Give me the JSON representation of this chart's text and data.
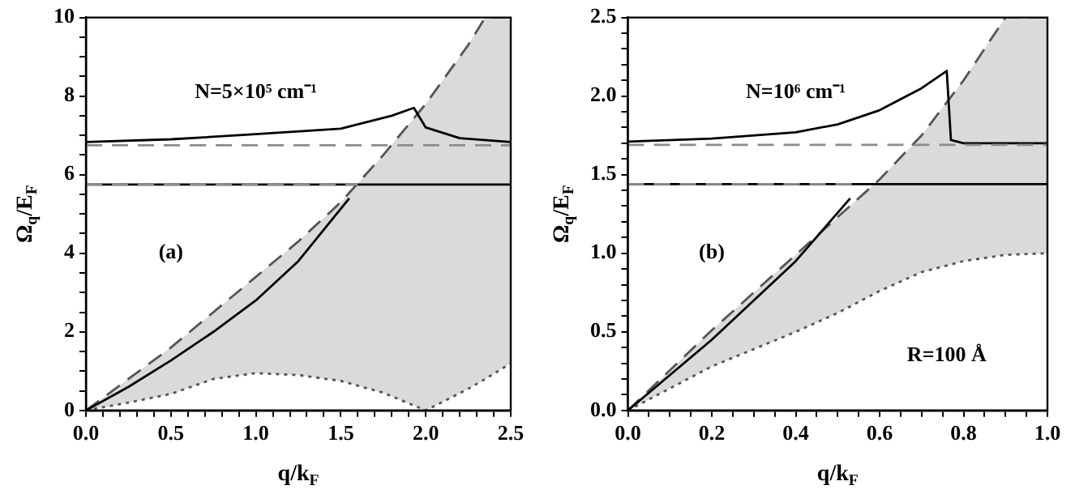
{
  "chart_data": [
    {
      "type": "line",
      "xlabel": "q/k$_{F}$",
      "ylabel": "Ω$_{q}$/E$_{F}$",
      "annotations": [
        "N=5×10⁵ cm⁻¹",
        "(a)"
      ],
      "xlim": [
        0,
        2.5
      ],
      "ylim": [
        0,
        10
      ],
      "xticks": [
        {
          "value": 0,
          "label": "0.0"
        },
        {
          "value": 0.1,
          "label": null
        },
        {
          "value": 0.2,
          "label": null
        },
        {
          "value": 0.3,
          "label": null
        },
        {
          "value": 0.4,
          "label": null
        },
        {
          "value": 0.5,
          "label": "0.5"
        },
        {
          "value": 0.6,
          "label": null
        },
        {
          "value": 0.7,
          "label": null
        },
        {
          "value": 0.8,
          "label": null
        },
        {
          "value": 0.9,
          "label": null
        },
        {
          "value": 1,
          "label": "1.0"
        },
        {
          "value": 1.1,
          "label": null
        },
        {
          "value": 1.2,
          "label": null
        },
        {
          "value": 1.3,
          "label": null
        },
        {
          "value": 1.4,
          "label": null
        },
        {
          "value": 1.5,
          "label": "1.5"
        },
        {
          "value": 1.6,
          "label": null
        },
        {
          "value": 1.7,
          "label": null
        },
        {
          "value": 1.8,
          "label": null
        },
        {
          "value": 1.9,
          "label": null
        },
        {
          "value": 2,
          "label": "2.0"
        },
        {
          "value": 2.1,
          "label": null
        },
        {
          "value": 2.2,
          "label": null
        },
        {
          "value": 2.3,
          "label": null
        },
        {
          "value": 2.4,
          "label": null
        },
        {
          "value": 2.5,
          "label": "2.5"
        }
      ],
      "yticks": [
        0,
        {
          "value": 0.5,
          "label": null
        },
        {
          "value": 1,
          "label": null
        },
        {
          "value": 1.5,
          "label": null
        },
        2,
        {
          "value": 2.5,
          "label": null
        },
        {
          "value": 3,
          "label": null
        },
        {
          "value": 3.5,
          "label": null
        },
        4,
        {
          "value": 4.5,
          "label": null
        },
        {
          "value": 5,
          "label": null
        },
        {
          "value": 5.5,
          "label": null
        },
        6,
        {
          "value": 6.5,
          "label": null
        },
        {
          "value": 7,
          "label": null
        },
        {
          "value": 7.5,
          "label": null
        },
        8,
        {
          "value": 8.5,
          "label": null
        },
        {
          "value": 9,
          "label": null
        },
        {
          "value": 9.5,
          "label": null
        },
        10
      ],
      "series": [
        {
          "color": "#555555",
          "line_style": "dotted",
          "x": [
            0,
            0.25,
            0.5,
            0.75,
            1,
            1.25,
            1.5,
            1.75,
            2,
            2.25,
            2.35,
            2.5
          ],
          "values": [
            0,
            0.2,
            0.42,
            0.8,
            0.95,
            0.9,
            0.75,
            0.45,
            0,
            0.55,
            0.8,
            1.2
          ]
        },
        {
          "color": "#555555",
          "line_style": "dashed",
          "x": [
            0,
            0.25,
            0.5,
            0.75,
            1,
            1.25,
            1.5,
            1.75,
            2,
            2.25,
            2.35,
            2.5
          ],
          "values": [
            0,
            0.8,
            1.6,
            2.5,
            3.4,
            4.3,
            5.3,
            6.5,
            7.8,
            9.3,
            10,
            10
          ],
          "lower": [
            0,
            0.2,
            0.42,
            0.8,
            0.95,
            0.9,
            0.75,
            0.45,
            0,
            0.55,
            0.8,
            1.2
          ],
          "upper": [
            0,
            0.8,
            1.6,
            2.5,
            3.4,
            4.3,
            5.3,
            6.5,
            7.8,
            9.3,
            10,
            10
          ]
        },
        {
          "color": "#000000",
          "line_style": "solid",
          "x": [
            0,
            0.25,
            0.5,
            0.75,
            1,
            1.25,
            1.55
          ],
          "values": [
            0,
            0.6,
            1.27,
            2,
            2.8,
            3.8,
            5.4
          ]
        },
        {
          "color": "#000000",
          "line_style": "solid",
          "x": [
            0,
            2.5
          ],
          "values": [
            5.75,
            5.75
          ]
        },
        {
          "color": "#8c8c8c",
          "line_style": "dashed",
          "x": [
            0,
            1.6
          ],
          "values": [
            5.75,
            5.75
          ]
        },
        {
          "color": "#000000",
          "line_style": "solid",
          "x": [
            0,
            0.5,
            1,
            1.5,
            1.8,
            1.93,
            2,
            2.2,
            2.5
          ],
          "values": [
            6.83,
            6.9,
            7.03,
            7.17,
            7.5,
            7.7,
            7.2,
            6.93,
            6.83
          ]
        },
        {
          "color": "#8c8c8c",
          "line_style": "dashed",
          "x": [
            0,
            2.5
          ],
          "values": [
            6.75,
            6.75
          ]
        }
      ]
    },
    {
      "type": "line",
      "xlabel": "q/k$_{F}$",
      "ylabel": "Ω$_{q}$/E$_{F}$",
      "annotations": [
        "N=10⁶ cm⁻¹",
        "(b)",
        "R=100 Å"
      ],
      "xlim": [
        0,
        1
      ],
      "ylim": [
        0,
        2.5
      ],
      "xticks": [
        {
          "value": 0,
          "label": "0.0"
        },
        {
          "value": 0.05,
          "label": null
        },
        {
          "value": 0.1,
          "label": null
        },
        {
          "value": 0.15,
          "label": null
        },
        {
          "value": 0.2,
          "label": "0.2"
        },
        {
          "value": 0.25,
          "label": null
        },
        {
          "value": 0.3,
          "label": null
        },
        {
          "value": 0.35,
          "label": null
        },
        {
          "value": 0.4,
          "label": "0.4"
        },
        {
          "value": 0.45,
          "label": null
        },
        {
          "value": 0.5,
          "label": null
        },
        {
          "value": 0.55,
          "label": null
        },
        {
          "value": 0.6,
          "label": "0.6"
        },
        {
          "value": 0.65,
          "label": null
        },
        {
          "value": 0.7,
          "label": null
        },
        {
          "value": 0.75,
          "label": null
        },
        {
          "value": 0.8,
          "label": "0.8"
        },
        {
          "value": 0.85,
          "label": null
        },
        {
          "value": 0.9,
          "label": null
        },
        {
          "value": 0.95,
          "label": null
        },
        {
          "value": 1,
          "label": "1.0"
        }
      ],
      "yticks": [
        {
          "value": 0,
          "label": "0.0"
        },
        {
          "value": 0.1,
          "label": null
        },
        {
          "value": 0.2,
          "label": null
        },
        {
          "value": 0.3,
          "label": null
        },
        {
          "value": 0.4,
          "label": null
        },
        {
          "value": 0.5,
          "label": "0.5"
        },
        {
          "value": 0.6,
          "label": null
        },
        {
          "value": 0.7,
          "label": null
        },
        {
          "value": 0.8,
          "label": null
        },
        {
          "value": 0.9,
          "label": null
        },
        {
          "value": 1,
          "label": "1.0"
        },
        {
          "value": 1.1,
          "label": null
        },
        {
          "value": 1.2,
          "label": null
        },
        {
          "value": 1.3,
          "label": null
        },
        {
          "value": 1.4,
          "label": null
        },
        {
          "value": 1.5,
          "label": "1.5"
        },
        {
          "value": 1.6,
          "label": null
        },
        {
          "value": 1.7,
          "label": null
        },
        {
          "value": 1.8,
          "label": null
        },
        {
          "value": 1.9,
          "label": null
        },
        {
          "value": 2,
          "label": "2.0"
        },
        {
          "value": 2.1,
          "label": null
        },
        {
          "value": 2.2,
          "label": null
        },
        {
          "value": 2.3,
          "label": null
        },
        {
          "value": 2.4,
          "label": null
        },
        {
          "value": 2.5,
          "label": "2.5"
        }
      ],
      "series": [
        {
          "color": "#555555",
          "line_style": "dotted",
          "x": [
            0,
            0.2,
            0.4,
            0.5,
            0.6,
            0.7,
            0.8,
            0.9,
            1
          ],
          "values": [
            0,
            0.28,
            0.5,
            0.62,
            0.76,
            0.88,
            0.95,
            0.99,
            1
          ]
        },
        {
          "color": "#555555",
          "line_style": "dashed",
          "x": [
            0,
            0.2,
            0.4,
            0.5,
            0.6,
            0.7,
            0.8,
            0.9,
            1
          ],
          "values": [
            0,
            0.51,
            0.99,
            1.23,
            1.47,
            1.75,
            2.1,
            2.5,
            2.5
          ],
          "lower": [
            0,
            0.28,
            0.5,
            0.62,
            0.76,
            0.88,
            0.95,
            0.99,
            1
          ],
          "upper": [
            0,
            0.51,
            0.99,
            1.23,
            1.47,
            1.75,
            2.1,
            2.5,
            2.5
          ]
        },
        {
          "color": "#000000",
          "line_style": "solid",
          "x": [
            0,
            0.2,
            0.4,
            0.53
          ],
          "values": [
            0,
            0.45,
            0.95,
            1.35
          ]
        },
        {
          "color": "#000000",
          "line_style": "solid",
          "x": [
            0,
            1
          ],
          "values": [
            1.44,
            1.44
          ]
        },
        {
          "color": "#8c8c8c",
          "line_style": "dashed",
          "x": [
            0,
            0.55
          ],
          "values": [
            1.44,
            1.44
          ]
        },
        {
          "color": "#000000",
          "line_style": "solid",
          "x": [
            0,
            0.2,
            0.4,
            0.5,
            0.6,
            0.7,
            0.76,
            0.77,
            0.8,
            1
          ],
          "values": [
            1.71,
            1.73,
            1.77,
            1.82,
            1.91,
            2.05,
            2.16,
            1.72,
            1.7,
            1.7
          ]
        },
        {
          "color": "#8c8c8c",
          "line_style": "dashed",
          "x": [
            0,
            1
          ],
          "values": [
            1.69,
            1.69
          ]
        }
      ]
    }
  ]
}
